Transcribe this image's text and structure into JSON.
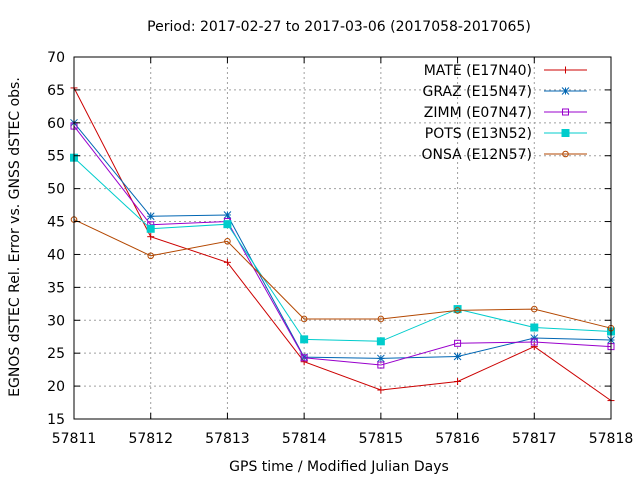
{
  "chart_data": {
    "type": "line",
    "title": "Period: 2017-02-27 to 2017-03-06 (2017058-2017065)",
    "xlabel": "GPS time / Modified Julian Days",
    "ylabel": "EGNOS dSTEC Rel. Error vs. GNSS dSTEC obs.",
    "xlim": [
      57811,
      57818
    ],
    "ylim": [
      15,
      70
    ],
    "x_ticks": [
      57811,
      57812,
      57813,
      57814,
      57815,
      57816,
      57817,
      57818
    ],
    "y_ticks": [
      15,
      20,
      25,
      30,
      35,
      40,
      45,
      50,
      55,
      60,
      65,
      70
    ],
    "grid": true,
    "legend_position": "top-right",
    "x": [
      57811,
      57812,
      57813,
      57814,
      57815,
      57816,
      57817,
      57818
    ],
    "series": [
      {
        "name": "MATE (E17N40)",
        "color": "#cc0000",
        "marker": "plus",
        "values": [
          65.3,
          42.7,
          38.8,
          23.7,
          19.4,
          20.7,
          26.0,
          17.8
        ]
      },
      {
        "name": "GRAZ (E15N47)",
        "color": "#0066b3",
        "marker": "star",
        "values": [
          60.0,
          45.8,
          46.0,
          24.4,
          24.2,
          24.5,
          27.3,
          27.0
        ]
      },
      {
        "name": "ZIMM (E07N47)",
        "color": "#9900cc",
        "marker": "open-square",
        "values": [
          59.5,
          44.5,
          45.0,
          24.3,
          23.2,
          26.5,
          26.7,
          26.0
        ]
      },
      {
        "name": "POTS (E13N52)",
        "color": "#00cccc",
        "marker": "filled-square",
        "values": [
          54.7,
          43.9,
          44.6,
          27.1,
          26.8,
          31.7,
          28.9,
          28.3
        ]
      },
      {
        "name": "ONSA (E12N57)",
        "color": "#b34700",
        "marker": "open-circle",
        "values": [
          45.3,
          39.8,
          42.0,
          30.2,
          30.2,
          31.5,
          31.7,
          28.8
        ]
      }
    ]
  }
}
